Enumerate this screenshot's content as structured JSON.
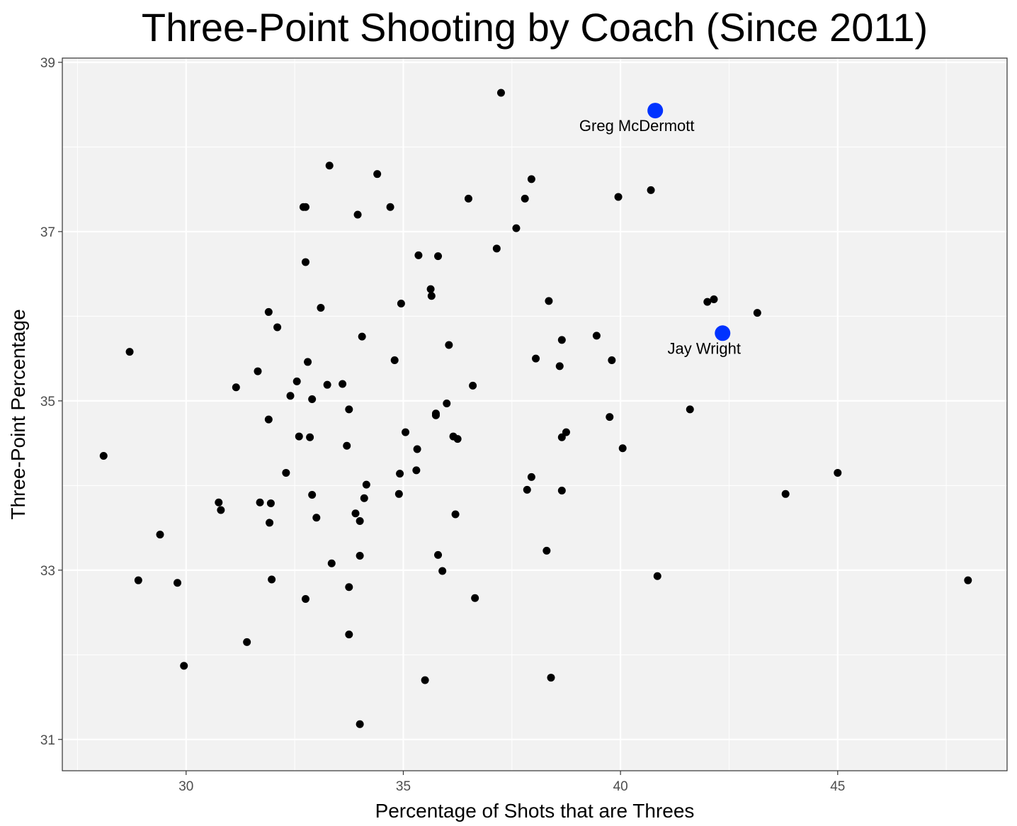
{
  "chart_data": {
    "type": "scatter",
    "title": "Three-Point Shooting by Coach (Since 2011)",
    "xlabel": "Percentage of Shots that are Threes",
    "ylabel": "Three-Point Percentage",
    "xlim": [
      27.15,
      48.9
    ],
    "ylim": [
      30.63,
      39.05
    ],
    "xticks": [
      30,
      35,
      40,
      45
    ],
    "yticks": [
      31,
      33,
      35,
      37,
      39
    ],
    "grid": true,
    "legend": "none",
    "colors": {
      "panel": "#f2f2f2",
      "grid": "#ffffff",
      "point": "#000000",
      "highlight": "#0033ff"
    },
    "points": [
      [
        28.1,
        34.35
      ],
      [
        28.7,
        35.58
      ],
      [
        28.9,
        32.88
      ],
      [
        29.4,
        33.42
      ],
      [
        29.8,
        32.85
      ],
      [
        29.95,
        31.87
      ],
      [
        30.75,
        33.8
      ],
      [
        30.8,
        33.71
      ],
      [
        31.15,
        35.16
      ],
      [
        31.4,
        32.15
      ],
      [
        31.65,
        35.35
      ],
      [
        31.7,
        33.8
      ],
      [
        31.9,
        34.78
      ],
      [
        31.9,
        36.05
      ],
      [
        31.92,
        33.56
      ],
      [
        31.95,
        33.79
      ],
      [
        31.97,
        32.89
      ],
      [
        32.1,
        35.87
      ],
      [
        32.3,
        34.15
      ],
      [
        32.4,
        35.06
      ],
      [
        32.55,
        35.23
      ],
      [
        32.6,
        34.58
      ],
      [
        32.7,
        37.29
      ],
      [
        32.75,
        37.29
      ],
      [
        32.75,
        36.64
      ],
      [
        32.75,
        32.66
      ],
      [
        32.8,
        35.46
      ],
      [
        32.85,
        34.57
      ],
      [
        32.9,
        33.89
      ],
      [
        32.9,
        35.02
      ],
      [
        33.0,
        33.62
      ],
      [
        33.1,
        36.1
      ],
      [
        33.25,
        35.19
      ],
      [
        33.3,
        37.78
      ],
      [
        33.35,
        33.08
      ],
      [
        33.6,
        35.2
      ],
      [
        33.7,
        34.47
      ],
      [
        33.75,
        34.9
      ],
      [
        33.75,
        32.8
      ],
      [
        33.75,
        32.24
      ],
      [
        33.9,
        33.67
      ],
      [
        33.95,
        37.2
      ],
      [
        34.0,
        33.58
      ],
      [
        34.0,
        33.17
      ],
      [
        34.0,
        31.18
      ],
      [
        34.05,
        35.76
      ],
      [
        34.1,
        33.85
      ],
      [
        34.15,
        34.01
      ],
      [
        34.4,
        37.68
      ],
      [
        34.7,
        37.29
      ],
      [
        34.8,
        35.48
      ],
      [
        34.9,
        33.9
      ],
      [
        34.92,
        34.14
      ],
      [
        34.95,
        36.15
      ],
      [
        35.05,
        34.63
      ],
      [
        35.3,
        34.18
      ],
      [
        35.32,
        34.43
      ],
      [
        35.35,
        36.72
      ],
      [
        35.5,
        31.7
      ],
      [
        35.63,
        36.32
      ],
      [
        35.65,
        36.24
      ],
      [
        35.75,
        34.83
      ],
      [
        35.75,
        34.85
      ],
      [
        35.8,
        36.71
      ],
      [
        35.8,
        33.18
      ],
      [
        35.9,
        32.99
      ],
      [
        36.0,
        34.97
      ],
      [
        36.05,
        35.66
      ],
      [
        36.15,
        34.58
      ],
      [
        36.2,
        33.66
      ],
      [
        36.25,
        34.55
      ],
      [
        36.5,
        37.39
      ],
      [
        36.6,
        35.18
      ],
      [
        36.65,
        32.67
      ],
      [
        37.15,
        36.8
      ],
      [
        37.25,
        38.64
      ],
      [
        37.6,
        37.04
      ],
      [
        37.8,
        37.39
      ],
      [
        37.85,
        33.95
      ],
      [
        37.95,
        37.62
      ],
      [
        37.95,
        34.1
      ],
      [
        38.05,
        35.5
      ],
      [
        38.3,
        33.23
      ],
      [
        38.35,
        36.18
      ],
      [
        38.4,
        31.73
      ],
      [
        38.6,
        35.41
      ],
      [
        38.65,
        35.72
      ],
      [
        38.65,
        34.57
      ],
      [
        38.65,
        33.94
      ],
      [
        38.75,
        34.63
      ],
      [
        39.45,
        35.77
      ],
      [
        39.75,
        34.81
      ],
      [
        39.8,
        35.48
      ],
      [
        39.95,
        37.41
      ],
      [
        40.05,
        34.44
      ],
      [
        40.7,
        37.49
      ],
      [
        40.85,
        32.93
      ],
      [
        41.6,
        34.9
      ],
      [
        42.0,
        36.17
      ],
      [
        42.15,
        36.2
      ],
      [
        43.15,
        36.04
      ],
      [
        43.8,
        33.9
      ],
      [
        45.0,
        34.15
      ],
      [
        48.0,
        32.88
      ]
    ],
    "highlighted": [
      {
        "name": "Greg McDermott",
        "x": 40.8,
        "y": 38.43
      },
      {
        "name": "Jay Wright",
        "x": 42.35,
        "y": 35.8
      }
    ]
  }
}
